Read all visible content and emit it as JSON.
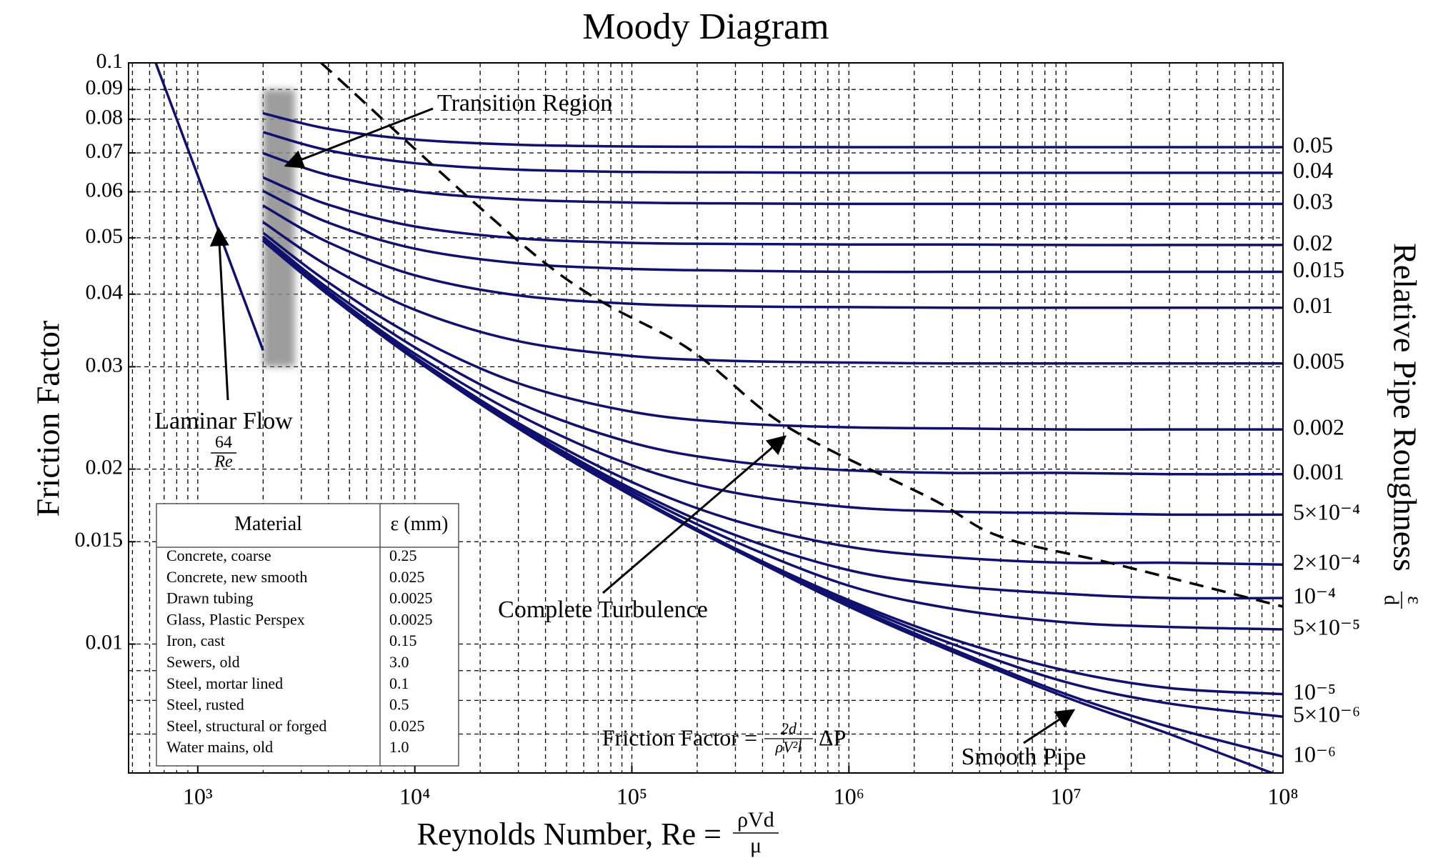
{
  "chart_data": {
    "type": "line",
    "title": "Moody Diagram",
    "xlabel": "Reynolds Number, Re =",
    "xlabel_fraction": [
      "ρVd",
      "μ"
    ],
    "ylabel": "Friction Factor",
    "y2label": "Relative Pipe Roughness",
    "y2label_fraction": [
      "ε",
      "d"
    ],
    "xscale": "log",
    "yscale": "log",
    "grid": true,
    "color": "#10106e",
    "xlim": [
      480,
      100000000
    ],
    "ylim": [
      0.006,
      0.1
    ],
    "xticks": [
      {
        "value": 1000,
        "label": "10³"
      },
      {
        "value": 10000,
        "label": "10⁴"
      },
      {
        "value": 100000,
        "label": "10⁵"
      },
      {
        "value": 1000000,
        "label": "10⁶"
      },
      {
        "value": 10000000,
        "label": "10⁷"
      },
      {
        "value": 100000000,
        "label": "10⁸"
      }
    ],
    "xminorticks": [
      500,
      600,
      700,
      800,
      900,
      2000,
      3000,
      4000,
      5000,
      6000,
      7000,
      8000,
      9000,
      20000,
      30000,
      40000,
      50000,
      60000,
      70000,
      80000,
      90000,
      200000,
      300000,
      400000,
      500000,
      600000,
      700000,
      800000,
      900000,
      2000000,
      3000000,
      4000000,
      5000000,
      6000000,
      7000000,
      8000000,
      9000000,
      20000000,
      30000000,
      40000000,
      50000000,
      60000000,
      70000000,
      80000000,
      90000000
    ],
    "yticks": [
      0.1,
      0.09,
      0.08,
      0.07,
      0.06,
      0.05,
      0.04,
      0.03,
      0.02,
      0.015,
      0.01
    ],
    "yminorticks": [
      0.009,
      0.008,
      0.007
    ],
    "x": [
      2000,
      4000,
      10000,
      30000,
      100000,
      300000,
      1000000,
      3000000,
      10000000,
      30000000,
      100000000
    ],
    "series": [
      {
        "name": "0.05",
        "values": [
          0.0819,
          0.077,
          0.0738,
          0.0723,
          0.0718,
          0.0717,
          0.0716,
          0.0716,
          0.0716,
          0.0716,
          0.0716
        ]
      },
      {
        "name": "0.04",
        "values": [
          0.076,
          0.0707,
          0.0672,
          0.0655,
          0.0649,
          0.0648,
          0.0647,
          0.0647,
          0.0647,
          0.0647,
          0.0647
        ]
      },
      {
        "name": "0.03",
        "values": [
          0.0699,
          0.0641,
          0.0601,
          0.0582,
          0.0575,
          0.0573,
          0.0572,
          0.0572,
          0.0572,
          0.0572,
          0.0572
        ]
      },
      {
        "name": "0.02",
        "values": [
          0.0635,
          0.057,
          0.0523,
          0.0499,
          0.049,
          0.0488,
          0.0487,
          0.0487,
          0.0486,
          0.0486,
          0.0486
        ]
      },
      {
        "name": "0.015",
        "values": [
          0.0602,
          0.0531,
          0.0479,
          0.0452,
          0.0442,
          0.0439,
          0.0437,
          0.0437,
          0.0437,
          0.0437,
          0.0437
        ]
      },
      {
        "name": "0.01",
        "values": [
          0.0568,
          0.0491,
          0.0431,
          0.0398,
          0.0385,
          0.0381,
          0.038,
          0.0379,
          0.0379,
          0.0379,
          0.0379
        ]
      },
      {
        "name": "0.005",
        "values": [
          0.0532,
          0.0447,
          0.0376,
          0.0332,
          0.0313,
          0.0307,
          0.0305,
          0.0304,
          0.0304,
          0.0304,
          0.0304
        ]
      },
      {
        "name": "0.002",
        "values": [
          0.051,
          0.0419,
          0.0338,
          0.0281,
          0.0251,
          0.024,
          0.0236,
          0.0235,
          0.0234,
          0.0234,
          0.0234
        ]
      },
      {
        "name": "0.001",
        "values": [
          0.0502,
          0.0409,
          0.0324,
          0.026,
          0.0222,
          0.0206,
          0.0199,
          0.0197,
          0.0197,
          0.0196,
          0.0196
        ]
      },
      {
        "name": "5×10⁻⁴",
        "values": [
          0.0498,
          0.0404,
          0.0316,
          0.0248,
          0.0203,
          0.0182,
          0.0172,
          0.0169,
          0.0168,
          0.0167,
          0.0167
        ]
      },
      {
        "name": "2×10⁻⁴",
        "values": [
          0.0496,
          0.0401,
          0.0312,
          0.024,
          0.019,
          0.0163,
          0.0147,
          0.0141,
          0.0138,
          0.0138,
          0.0137
        ]
      },
      {
        "name": "10⁻⁴",
        "values": [
          0.0495,
          0.04,
          0.031,
          0.0238,
          0.0185,
          0.0154,
          0.0134,
          0.0126,
          0.0122,
          0.012,
          0.012
        ]
      },
      {
        "name": "5×10⁻⁵",
        "values": [
          0.0495,
          0.04,
          0.031,
          0.0236,
          0.0183,
          0.015,
          0.0126,
          0.0115,
          0.0109,
          0.0107,
          0.0106
        ]
      },
      {
        "name": "10⁻⁵",
        "values": [
          0.0494,
          0.0399,
          0.0309,
          0.0235,
          0.0181,
          0.0146,
          0.0119,
          0.0102,
          0.009,
          0.0084,
          0.0082
        ]
      },
      {
        "name": "5×10⁻⁶",
        "values": [
          0.0494,
          0.0399,
          0.0309,
          0.0235,
          0.018,
          0.0145,
          0.0118,
          0.01,
          0.0086,
          0.0079,
          0.0075
        ]
      },
      {
        "name": "10⁻⁶",
        "values": [
          0.0494,
          0.0399,
          0.0309,
          0.0235,
          0.018,
          0.0145,
          0.0117,
          0.0098,
          0.0082,
          0.0072,
          0.0064
        ]
      }
    ],
    "smooth_pipe": {
      "name": "Smooth Pipe",
      "values": [
        0.0494,
        0.0399,
        0.0309,
        0.0235,
        0.018,
        0.0145,
        0.0116,
        0.0097,
        0.0081,
        0.007,
        0.0059
      ]
    },
    "laminar": {
      "name": "Laminar Flow",
      "fraction": [
        "64",
        "Re"
      ],
      "x": [
        640,
        2000
      ],
      "values": [
        0.1,
        0.032
      ]
    },
    "complete_turbulence": {
      "name": "Complete Turbulence",
      "x": [
        3700,
        41500,
        183000,
        515000,
        2390000,
        5000000,
        17200000,
        100000000
      ],
      "values": [
        0.1,
        0.0447,
        0.0322,
        0.0237,
        0.0178,
        0.0153,
        0.0137,
        0.0116
      ]
    },
    "transition": {
      "name": "Transition Region",
      "x": [
        2000,
        2800
      ],
      "y": [
        0.03,
        0.09
      ]
    },
    "formula": {
      "text": "Friction Factor =",
      "fraction": [
        "2d",
        "ρV²l"
      ],
      "suffix": "ΔP"
    }
  },
  "table": {
    "columns": [
      "Material",
      "ε (mm)"
    ],
    "rows": [
      [
        "Concrete, coarse",
        "0.25"
      ],
      [
        "Concrete, new smooth",
        "0.025"
      ],
      [
        "Drawn tubing",
        "0.0025"
      ],
      [
        "Glass, Plastic Perspex",
        "0.0025"
      ],
      [
        "Iron, cast",
        "0.15"
      ],
      [
        "Sewers, old",
        "3.0"
      ],
      [
        "Steel, mortar lined",
        "0.1"
      ],
      [
        "Steel, rusted",
        "0.5"
      ],
      [
        "Steel, structural or forged",
        "0.025"
      ],
      [
        "Water mains, old",
        "1.0"
      ]
    ]
  }
}
